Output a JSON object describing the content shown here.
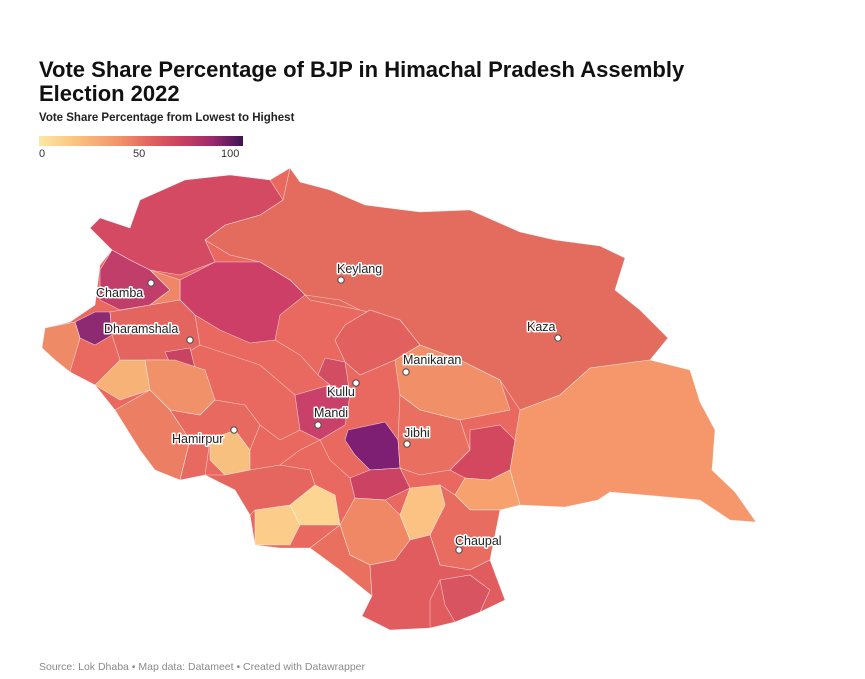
{
  "title": "Vote Share Percentage of BJP in Himachal Pradesh Assembly Election 2022",
  "legend": {
    "title": "Vote Share Percentage from Lowest to Highest",
    "ticks": [
      "0",
      "50",
      "100"
    ],
    "colors": [
      "#fde7a4",
      "#f9c47e",
      "#f2916a",
      "#e0615f",
      "#c9405f",
      "#9c2a6e",
      "#3d1455"
    ]
  },
  "cities": [
    {
      "name": "Keylang"
    },
    {
      "name": "Chamba"
    },
    {
      "name": "Dharamshala"
    },
    {
      "name": "Kaza"
    },
    {
      "name": "Manikaran"
    },
    {
      "name": "Kullu"
    },
    {
      "name": "Mandi"
    },
    {
      "name": "Jibhi"
    },
    {
      "name": "Hamirpur"
    },
    {
      "name": "Chaupal"
    }
  ],
  "source": "Source: Lok Dhaba • Map data: Datameet • Created with Datawrapper"
}
